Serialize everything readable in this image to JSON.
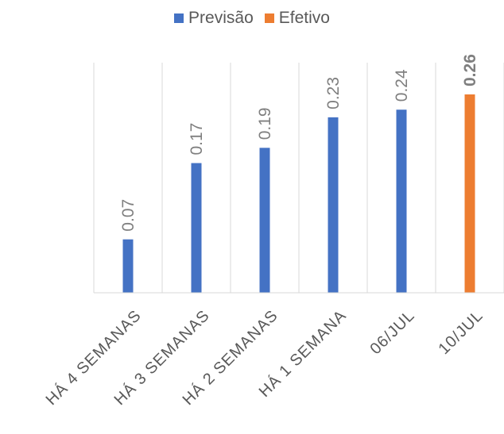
{
  "legend": {
    "forecast_label": "Previsão",
    "actual_label": "Efetivo",
    "forecast_color": "#4472C4",
    "actual_color": "#ED7D31"
  },
  "chart_data": {
    "type": "bar",
    "categories": [
      "HÁ 4 SEMANAS",
      "HÁ 3 SEMANAS",
      "HÁ 2 SEMANAS",
      "HÁ 1 SEMANA",
      "06/JUL",
      "10/JUL"
    ],
    "series": [
      {
        "name": "Previsão",
        "color": "#4472C4",
        "values": [
          0.07,
          0.17,
          0.19,
          0.23,
          0.24,
          null
        ],
        "labels": [
          "0.07",
          "0.17",
          "0.19",
          "0.23",
          "0.24",
          ""
        ]
      },
      {
        "name": "Efetivo",
        "color": "#ED7D31",
        "values": [
          null,
          null,
          null,
          null,
          null,
          0.26
        ],
        "labels": [
          "",
          "",
          "",
          "",
          "",
          "0.26"
        ]
      }
    ],
    "ylim": [
      0,
      0.3
    ],
    "grid": "vertical",
    "legend_position": "top"
  }
}
